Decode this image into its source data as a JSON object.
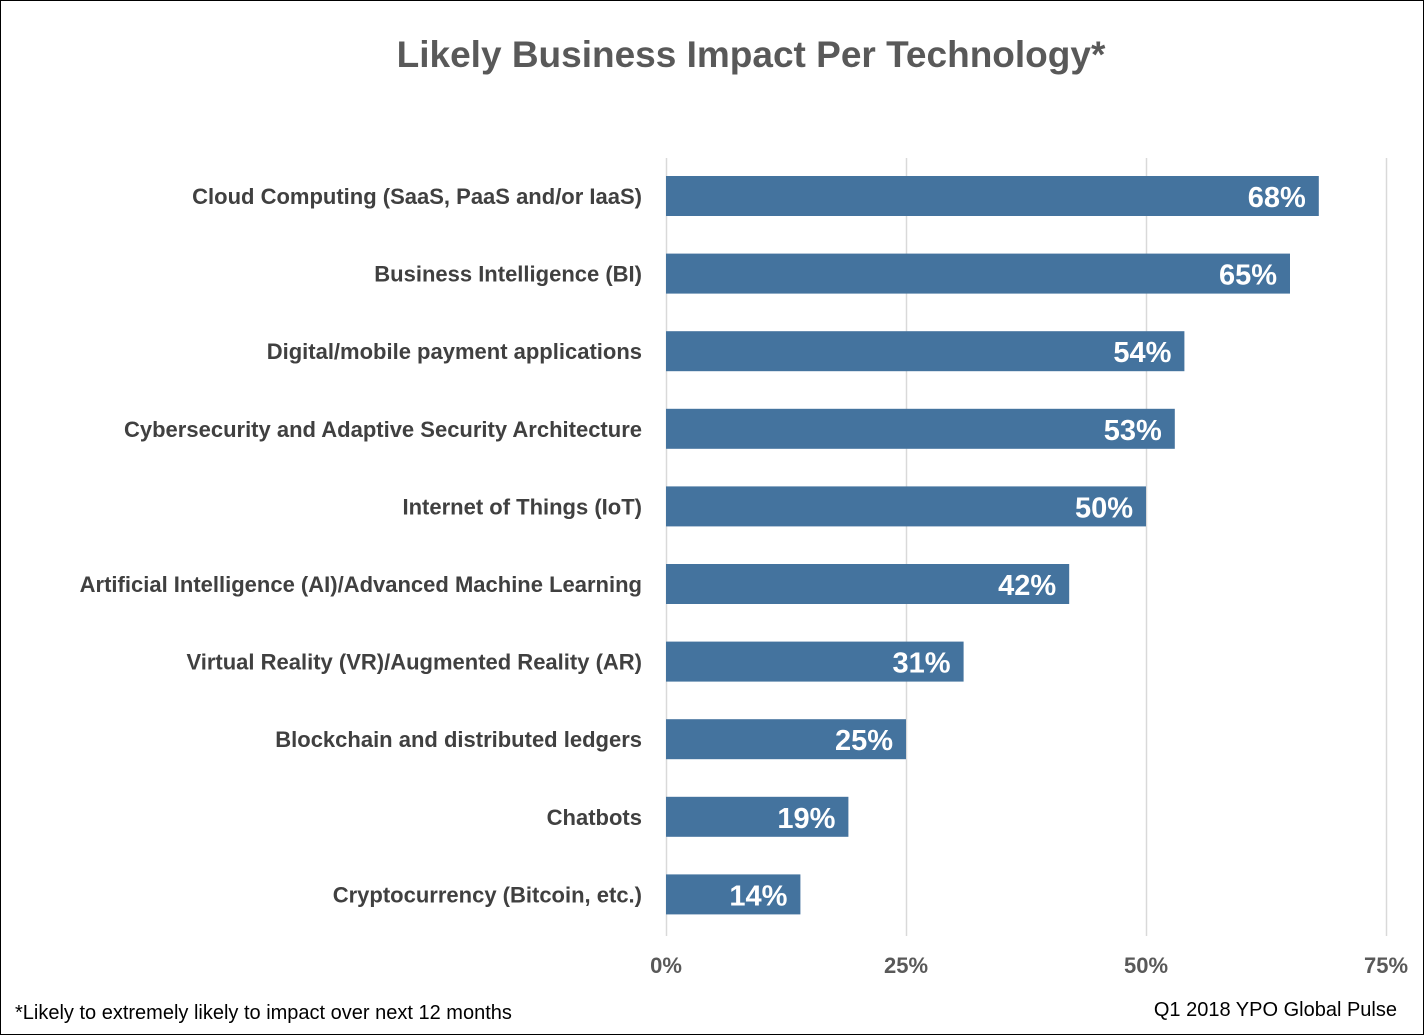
{
  "chart_data": {
    "type": "bar",
    "orientation": "horizontal",
    "title": "Likely Business Impact Per Technology*",
    "categories": [
      "Cloud Computing (SaaS, PaaS and/or IaaS)",
      "Business Intelligence (BI)",
      "Digital/mobile payment applications",
      "Cybersecurity and Adaptive Security Architecture",
      "Internet of Things (IoT)",
      "Artificial Intelligence (AI)/Advanced Machine Learning",
      "Virtual Reality (VR)/Augmented Reality (AR)",
      "Blockchain and distributed ledgers",
      "Chatbots",
      "Cryptocurrency (Bitcoin, etc.)"
    ],
    "values": [
      68,
      65,
      54,
      53,
      50,
      42,
      31,
      25,
      19,
      14
    ],
    "value_labels": [
      "68%",
      "65%",
      "54%",
      "53%",
      "50%",
      "42%",
      "31%",
      "25%",
      "19%",
      "14%"
    ],
    "xlim": [
      0,
      75
    ],
    "xticks": [
      0,
      25,
      50,
      75
    ],
    "xtick_labels": [
      "0%",
      "25%",
      "50%",
      "75%"
    ],
    "grid": "vertical",
    "bar_color": "#44739E",
    "footnote": "*Likely to extremely likely to impact over next 12 months",
    "source": "Q1 2018 YPO Global Pulse"
  }
}
